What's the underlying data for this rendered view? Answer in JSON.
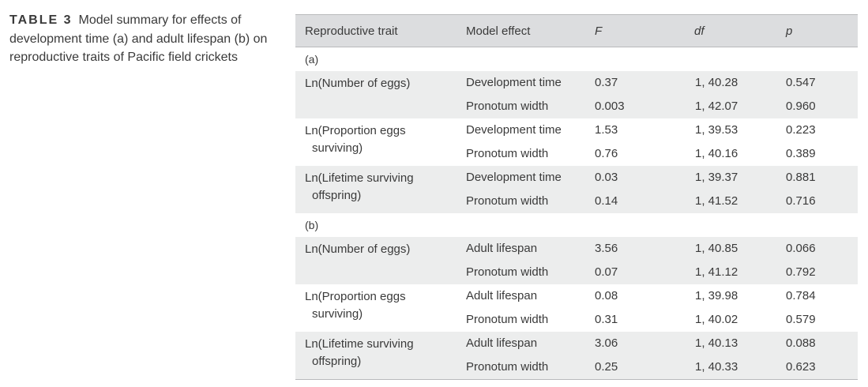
{
  "caption": {
    "label": "TABLE 3",
    "text": "Model summary for effects of development time (a) and adult lifespan (b) on reproductive traits of Pacific field crickets"
  },
  "table": {
    "headers": {
      "trait": "Reproductive trait",
      "effect": "Model effect",
      "f": "F",
      "df": "df",
      "p": "p"
    },
    "sections": [
      {
        "label": "(a)",
        "groups": [
          {
            "trait_line1": "Ln(Number of eggs)",
            "trait_line2": "",
            "rows": [
              {
                "effect": "Development time",
                "f": "0.37",
                "df": "1, 40.28",
                "p": "0.547"
              },
              {
                "effect": "Pronotum width",
                "f": "0.003",
                "df": "1, 42.07",
                "p": "0.960"
              }
            ]
          },
          {
            "trait_line1": "Ln(Proportion eggs",
            "trait_line2": "surviving)",
            "rows": [
              {
                "effect": "Development time",
                "f": "1.53",
                "df": "1, 39.53",
                "p": "0.223"
              },
              {
                "effect": "Pronotum width",
                "f": "0.76",
                "df": "1, 40.16",
                "p": "0.389"
              }
            ]
          },
          {
            "trait_line1": "Ln(Lifetime surviving",
            "trait_line2": "offspring)",
            "rows": [
              {
                "effect": "Development time",
                "f": "0.03",
                "df": "1, 39.37",
                "p": "0.881"
              },
              {
                "effect": "Pronotum width",
                "f": "0.14",
                "df": "1, 41.52",
                "p": "0.716"
              }
            ]
          }
        ]
      },
      {
        "label": "(b)",
        "groups": [
          {
            "trait_line1": "Ln(Number of eggs)",
            "trait_line2": "",
            "rows": [
              {
                "effect": "Adult lifespan",
                "f": "3.56",
                "df": "1, 40.85",
                "p": "0.066"
              },
              {
                "effect": "Pronotum width",
                "f": "0.07",
                "df": "1, 41.12",
                "p": "0.792"
              }
            ]
          },
          {
            "trait_line1": "Ln(Proportion eggs",
            "trait_line2": "surviving)",
            "rows": [
              {
                "effect": "Adult lifespan",
                "f": "0.08",
                "df": "1, 39.98",
                "p": "0.784"
              },
              {
                "effect": "Pronotum width",
                "f": "0.31",
                "df": "1, 40.02",
                "p": "0.579"
              }
            ]
          },
          {
            "trait_line1": "Ln(Lifetime surviving",
            "trait_line2": "offspring)",
            "rows": [
              {
                "effect": "Adult lifespan",
                "f": "3.06",
                "df": "1, 40.13",
                "p": "0.088"
              },
              {
                "effect": "Pronotum width",
                "f": "0.25",
                "df": "1, 40.33",
                "p": "0.623"
              }
            ]
          }
        ]
      }
    ]
  }
}
